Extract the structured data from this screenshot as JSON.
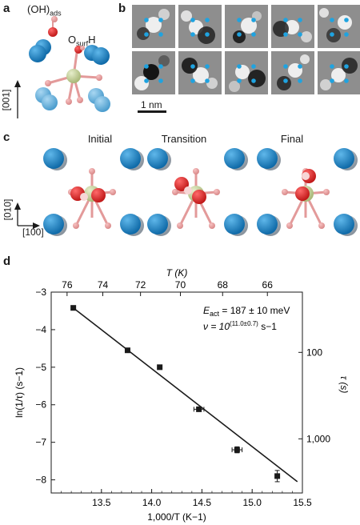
{
  "panels": {
    "a": {
      "letter": "a",
      "oh_label": "(OH)",
      "oh_sub": "ads",
      "osurf_label": "O",
      "osurf_sub": "surf",
      "osurf_suffix": "H",
      "axis": "[001]"
    },
    "b": {
      "letter": "b",
      "scale": "1 nm"
    },
    "c": {
      "letter": "c",
      "captions": [
        "Initial",
        "Transition",
        "Final"
      ],
      "axis_y": "[010]",
      "axis_x": "[100]"
    },
    "d": {
      "letter": "d"
    }
  },
  "chart_data": {
    "type": "scatter",
    "x": [
      13.22,
      13.76,
      14.08,
      14.47,
      14.85,
      15.25
    ],
    "y": [
      -3.42,
      -4.55,
      -5.0,
      -6.12,
      -7.2,
      -7.9
    ],
    "x_err": [
      0.0,
      0.0,
      0.0,
      0.05,
      0.05,
      0.0
    ],
    "y_err": [
      0.0,
      0.0,
      0.0,
      0.05,
      0.08,
      0.15
    ],
    "fit_line": {
      "x": [
        13.22,
        15.45
      ],
      "y": [
        -3.42,
        -8.05
      ]
    },
    "xlim": [
      13.0,
      15.5
    ],
    "ylim": [
      -8.35,
      -3.0
    ],
    "xticks": [
      "13.5",
      "14.0",
      "14.5",
      "15.0",
      "15.5"
    ],
    "yticks": [
      "-3",
      "-4",
      "-5",
      "-6",
      "-7",
      "-8"
    ],
    "top_ticks": [
      "76",
      "74",
      "72",
      "70",
      "68",
      "66"
    ],
    "right_ticks": [
      "100",
      "1,000"
    ],
    "xlabel": "1,000/T (K−1)",
    "ylabel": "ln(1/τ) (s−1)",
    "top_label": "T (K)",
    "right_label": "τ (s)",
    "annotation_1": "E",
    "annotation_1_sub": "act",
    "annotation_1_rest": " = 187 ± 10 meV",
    "annotation_2": "ν = 10",
    "annotation_2_sup": "(11.0±0.7)",
    "annotation_2_rest": " s−1"
  }
}
